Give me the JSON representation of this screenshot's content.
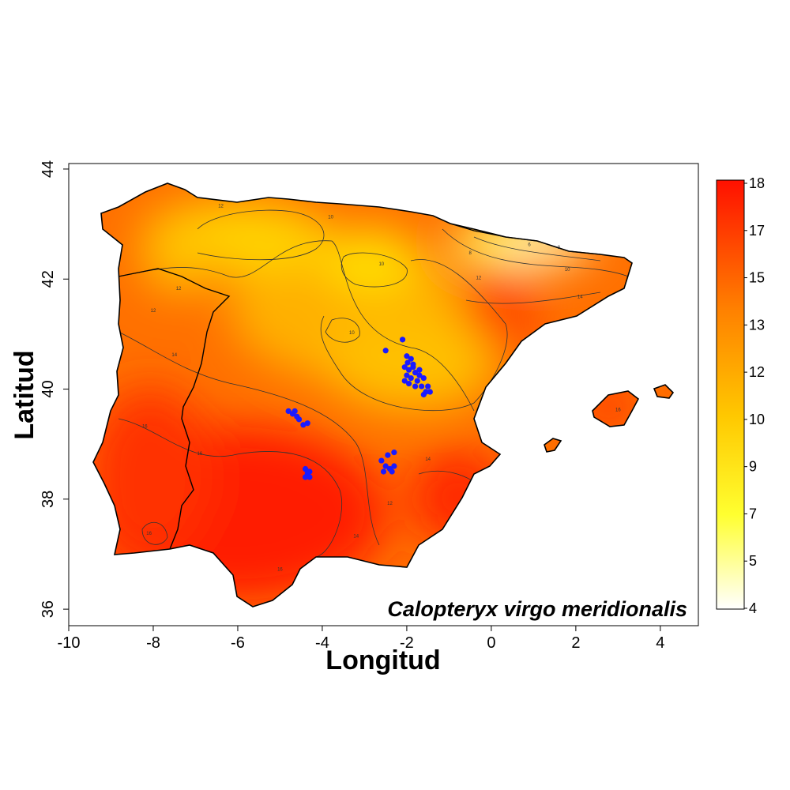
{
  "map": {
    "species": "Calopteryx virgo meridionalis",
    "xlabel": "Longitud",
    "ylabel": "Latitud",
    "xlim": [
      -10,
      4.9
    ],
    "ylim": [
      35.7,
      44.1
    ],
    "x_ticks": [
      "-10",
      "-8",
      "-6",
      "-4",
      "-2",
      "0",
      "2",
      "4"
    ],
    "x_tick_values": [
      -10,
      -8,
      -6,
      -4,
      -2,
      0,
      2,
      4
    ],
    "y_ticks": [
      "36",
      "38",
      "40",
      "42",
      "44"
    ],
    "y_tick_values": [
      36,
      38,
      40,
      42,
      44
    ],
    "colorbar": {
      "labels": [
        "4",
        "5",
        "7",
        "9",
        "10",
        "12",
        "13",
        "15",
        "17",
        "18"
      ],
      "min": 4,
      "max": 18,
      "colors": [
        "#ffffff",
        "#ffff00",
        "#ffd000",
        "#ff8800",
        "#ff0000"
      ]
    },
    "contour_labels": [
      {
        "text": "6",
        "lon": 0.9,
        "lat": 42.6
      },
      {
        "text": "8",
        "lon": 1.6,
        "lat": 42.55
      },
      {
        "text": "8",
        "lon": -0.5,
        "lat": 42.45
      },
      {
        "text": "10",
        "lon": -3.8,
        "lat": 43.1
      },
      {
        "text": "10",
        "lon": 1.8,
        "lat": 42.15
      },
      {
        "text": "10",
        "lon": -2.6,
        "lat": 42.25
      },
      {
        "text": "10",
        "lon": -3.3,
        "lat": 41.0
      },
      {
        "text": "12",
        "lon": -6.4,
        "lat": 43.3
      },
      {
        "text": "12",
        "lon": -7.4,
        "lat": 41.8
      },
      {
        "text": "12",
        "lon": -8.0,
        "lat": 41.4
      },
      {
        "text": "12",
        "lon": -0.3,
        "lat": 42.0
      },
      {
        "text": "12",
        "lon": -2.4,
        "lat": 37.9
      },
      {
        "text": "14",
        "lon": -7.5,
        "lat": 40.6
      },
      {
        "text": "14",
        "lon": 2.1,
        "lat": 41.65
      },
      {
        "text": "14",
        "lon": -1.5,
        "lat": 38.7
      },
      {
        "text": "14",
        "lon": -3.2,
        "lat": 37.3
      },
      {
        "text": "16",
        "lon": -8.2,
        "lat": 39.3
      },
      {
        "text": "16",
        "lon": -6.9,
        "lat": 38.8
      },
      {
        "text": "16",
        "lon": -8.1,
        "lat": 37.35
      },
      {
        "text": "16",
        "lon": -5.0,
        "lat": 36.7
      },
      {
        "text": "16",
        "lon": 3.0,
        "lat": 39.6
      }
    ],
    "occurrences": [
      [
        -2.1,
        40.9
      ],
      [
        -2.5,
        40.7
      ],
      [
        -2.0,
        40.6
      ],
      [
        -1.9,
        40.55
      ],
      [
        -1.85,
        40.45
      ],
      [
        -2.05,
        40.4
      ],
      [
        -1.95,
        40.35
      ],
      [
        -1.8,
        40.3
      ],
      [
        -1.7,
        40.25
      ],
      [
        -1.6,
        40.2
      ],
      [
        -1.9,
        40.2
      ],
      [
        -2.0,
        40.25
      ],
      [
        -1.75,
        40.15
      ],
      [
        -1.65,
        40.05
      ],
      [
        -1.5,
        40.05
      ],
      [
        -1.8,
        40.05
      ],
      [
        -1.95,
        40.1
      ],
      [
        -1.55,
        39.95
      ],
      [
        -1.45,
        39.95
      ],
      [
        -1.6,
        39.9
      ],
      [
        -2.05,
        40.15
      ],
      [
        -1.85,
        40.4
      ],
      [
        -1.7,
        40.35
      ],
      [
        -1.98,
        40.48
      ],
      [
        -4.8,
        39.6
      ],
      [
        -4.7,
        39.55
      ],
      [
        -4.6,
        39.5
      ],
      [
        -4.55,
        39.45
      ],
      [
        -4.45,
        39.35
      ],
      [
        -4.35,
        39.38
      ],
      [
        -4.65,
        39.6
      ],
      [
        -4.4,
        38.55
      ],
      [
        -4.35,
        38.45
      ],
      [
        -4.3,
        38.4
      ],
      [
        -4.4,
        38.4
      ],
      [
        -4.35,
        38.5
      ],
      [
        -4.3,
        38.5
      ],
      [
        -2.6,
        38.7
      ],
      [
        -2.45,
        38.8
      ],
      [
        -2.3,
        38.85
      ],
      [
        -2.5,
        38.6
      ],
      [
        -2.4,
        38.55
      ],
      [
        -2.3,
        38.6
      ],
      [
        -2.55,
        38.5
      ],
      [
        -2.35,
        38.5
      ]
    ]
  }
}
